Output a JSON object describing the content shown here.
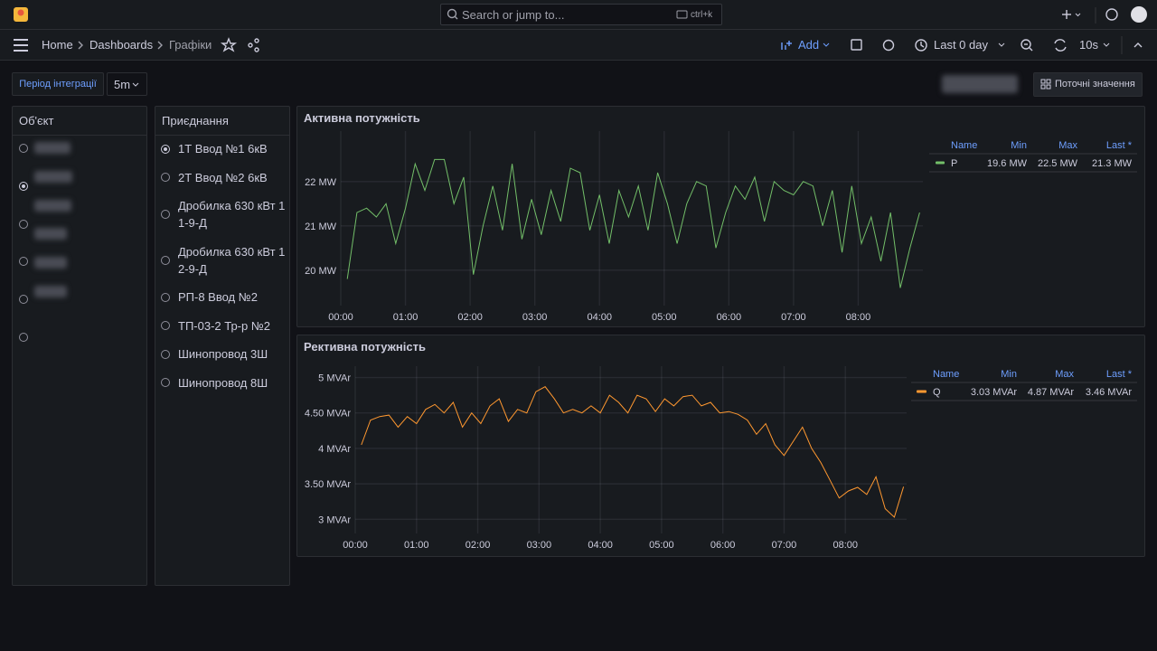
{
  "topbar": {
    "search_placeholder": "Search or jump to...",
    "shortcut": "ctrl+k"
  },
  "breadcrumbs": [
    "Home",
    "Dashboards",
    "Графіки"
  ],
  "toolbar": {
    "add": "Add",
    "time_range": "Last 0 day",
    "refresh": "10s"
  },
  "variables": {
    "label": "Період інтеграції",
    "value": "5m",
    "button": "Поточні значення"
  },
  "object_panel": {
    "title": "Об'єкт"
  },
  "connection_panel": {
    "title": "Приєднання",
    "items": [
      "1Т Ввод №1 6кВ",
      "2Т Ввод №2 6кВ",
      "Дробилка 630 кВт 1 1-9-Д",
      "Дробилка 630 кВт 1 2-9-Д",
      "РП-8 Ввод №2",
      "ТП-03-2 Тр-р №2",
      "Шинопровод 3Ш",
      "Шинопровод 8Ш"
    ]
  },
  "chart_data": [
    {
      "type": "line",
      "title": "Активна потужність",
      "x": [
        0.1,
        0.25,
        0.4,
        0.55,
        0.7,
        0.85,
        1,
        1.15,
        1.3,
        1.45,
        1.6,
        1.75,
        1.9,
        2.05,
        2.2,
        2.35,
        2.5,
        2.65,
        2.8,
        2.95,
        3.1,
        3.25,
        3.4,
        3.55,
        3.7,
        3.85,
        4,
        4.15,
        4.3,
        4.45,
        4.6,
        4.75,
        4.9,
        5.05,
        5.2,
        5.35,
        5.5,
        5.65,
        5.8,
        5.95,
        6.1,
        6.25,
        6.4,
        6.55,
        6.7,
        6.85,
        7,
        7.15,
        7.3,
        7.45,
        7.6,
        7.75,
        7.9,
        8.05,
        8.2,
        8.35,
        8.5,
        8.65,
        8.8,
        8.95
      ],
      "series": [
        {
          "name": "P",
          "color": "#73bf69",
          "values": [
            19.8,
            21.3,
            21.4,
            21.2,
            21.5,
            20.6,
            21.4,
            22.4,
            21.8,
            22.5,
            22.5,
            21.5,
            22.1,
            19.9,
            21.0,
            21.9,
            20.9,
            22.4,
            20.7,
            21.6,
            20.8,
            21.8,
            21.1,
            22.3,
            22.2,
            20.9,
            21.7,
            20.6,
            21.8,
            21.2,
            21.9,
            20.9,
            22.2,
            21.5,
            20.6,
            21.5,
            22.0,
            21.9,
            20.5,
            21.3,
            21.9,
            21.6,
            22.1,
            21.1,
            22.0,
            21.8,
            21.7,
            22.0,
            21.9,
            21.0,
            21.8,
            20.4,
            21.9,
            20.6,
            21.2,
            20.2,
            21.3,
            19.6,
            20.5,
            21.3
          ]
        }
      ],
      "xlim": [
        0,
        9
      ],
      "ylim": [
        19.2,
        23.14
      ],
      "xticks": [
        {
          "value": 0,
          "label": "00:00"
        },
        {
          "value": 1,
          "label": "01:00"
        },
        {
          "value": 2,
          "label": "02:00"
        },
        {
          "value": 3,
          "label": "03:00"
        },
        {
          "value": 4,
          "label": "04:00"
        },
        {
          "value": 5,
          "label": "05:00"
        },
        {
          "value": 6,
          "label": "06:00"
        },
        {
          "value": 7,
          "label": "07:00"
        },
        {
          "value": 8,
          "label": "08:00"
        }
      ],
      "yticks": [
        {
          "value": 20,
          "label": "20 MW"
        },
        {
          "value": 21,
          "label": "21 MW"
        },
        {
          "value": 22,
          "label": "22 MW"
        }
      ],
      "grid": true,
      "legend": {
        "headers": [
          "Name",
          "Min",
          "Max",
          "Last *"
        ],
        "stats": [
          "19.6 MW",
          "22.5 MW",
          "21.3 MW"
        ]
      }
    },
    {
      "type": "line",
      "title": "Рективна потужність",
      "x": [
        0.1,
        0.25,
        0.4,
        0.55,
        0.7,
        0.85,
        1,
        1.15,
        1.3,
        1.45,
        1.6,
        1.75,
        1.9,
        2.05,
        2.2,
        2.35,
        2.5,
        2.65,
        2.8,
        2.95,
        3.1,
        3.25,
        3.4,
        3.55,
        3.7,
        3.85,
        4,
        4.15,
        4.3,
        4.45,
        4.6,
        4.75,
        4.9,
        5.05,
        5.2,
        5.35,
        5.5,
        5.65,
        5.8,
        5.95,
        6.1,
        6.25,
        6.4,
        6.55,
        6.7,
        6.85,
        7,
        7.15,
        7.3,
        7.45,
        7.6,
        7.75,
        7.9,
        8.05,
        8.2,
        8.35,
        8.5,
        8.65,
        8.8,
        8.95
      ],
      "series": [
        {
          "name": "Q",
          "color": "#ff9830",
          "values": [
            4.05,
            4.4,
            4.45,
            4.47,
            4.3,
            4.45,
            4.35,
            4.55,
            4.62,
            4.5,
            4.65,
            4.3,
            4.5,
            4.35,
            4.6,
            4.7,
            4.38,
            4.55,
            4.5,
            4.8,
            4.87,
            4.7,
            4.5,
            4.55,
            4.5,
            4.6,
            4.5,
            4.75,
            4.65,
            4.5,
            4.75,
            4.7,
            4.52,
            4.7,
            4.6,
            4.73,
            4.75,
            4.6,
            4.65,
            4.5,
            4.52,
            4.48,
            4.4,
            4.2,
            4.35,
            4.05,
            3.9,
            4.1,
            4.3,
            4.0,
            3.8,
            3.55,
            3.3,
            3.4,
            3.45,
            3.35,
            3.6,
            3.15,
            3.03,
            3.46
          ]
        }
      ],
      "xlim": [
        0,
        9
      ],
      "ylim": [
        2.8,
        5.16
      ],
      "xticks": [
        {
          "value": 0,
          "label": "00:00"
        },
        {
          "value": 1,
          "label": "01:00"
        },
        {
          "value": 2,
          "label": "02:00"
        },
        {
          "value": 3,
          "label": "03:00"
        },
        {
          "value": 4,
          "label": "04:00"
        },
        {
          "value": 5,
          "label": "05:00"
        },
        {
          "value": 6,
          "label": "06:00"
        },
        {
          "value": 7,
          "label": "07:00"
        },
        {
          "value": 8,
          "label": "08:00"
        }
      ],
      "yticks": [
        {
          "value": 3,
          "label": "3 MVAr"
        },
        {
          "value": 3.5,
          "label": "3.50 MVAr"
        },
        {
          "value": 4,
          "label": "4 MVAr"
        },
        {
          "value": 4.5,
          "label": "4.50 MVAr"
        },
        {
          "value": 5,
          "label": "5 MVAr"
        }
      ],
      "grid": true,
      "legend": {
        "headers": [
          "Name",
          "Min",
          "Max",
          "Last *"
        ],
        "stats": [
          "3.03 MVAr",
          "4.87 MVAr",
          "3.46 MVAr"
        ]
      }
    }
  ]
}
